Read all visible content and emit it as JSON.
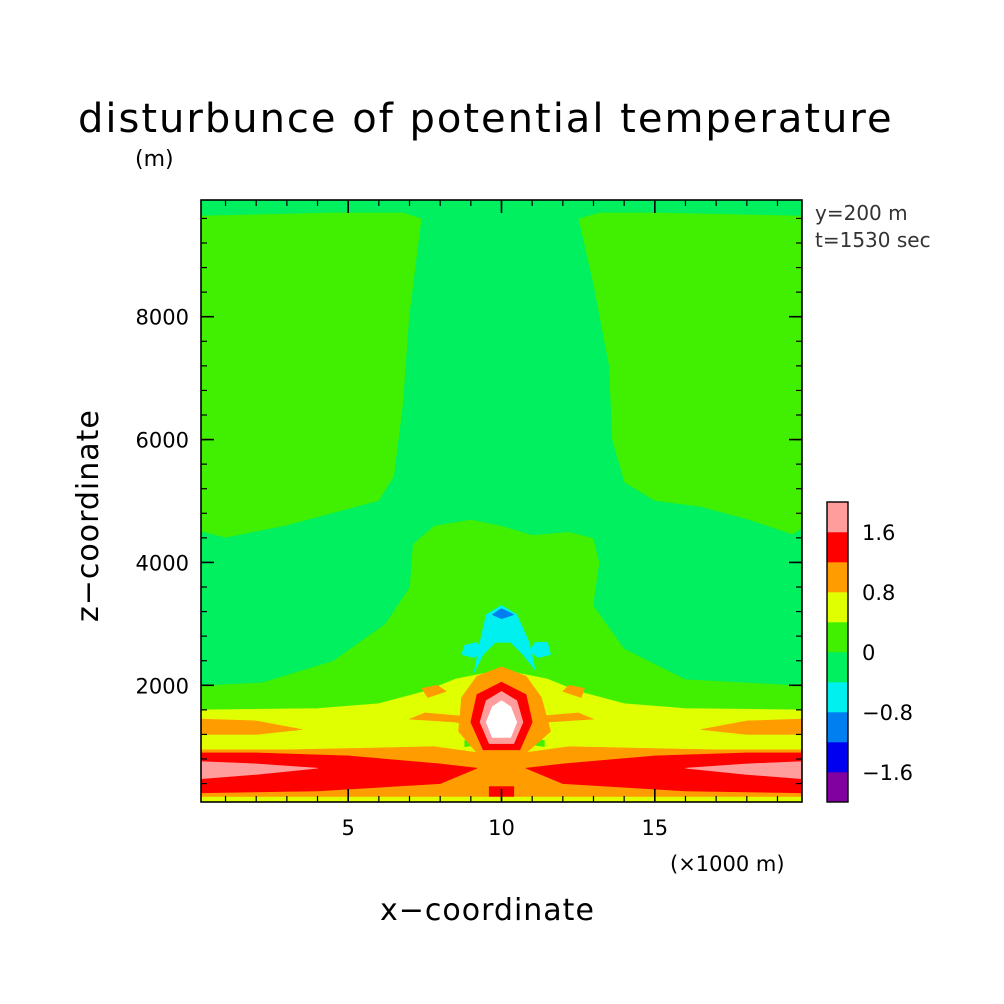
{
  "chart_data": {
    "type": "heatmap",
    "title": "disturbunce of potential temperature",
    "xlabel": "x−coordinate",
    "ylabel": "z−coordinate",
    "x_unit_label": "(×1000 m)",
    "y_unit_label": "(m)",
    "annotation_y": "y=200 m",
    "annotation_t": "t=1530 sec",
    "xlim": [
      0.2,
      19.8
    ],
    "ylim": [
      100,
      9900
    ],
    "x_ticks": [
      5,
      10,
      15
    ],
    "x_tick_labels": [
      "5",
      "10",
      "15"
    ],
    "y_ticks": [
      2000,
      4000,
      6000,
      8000
    ],
    "y_tick_labels": [
      "2000",
      "4000",
      "6000",
      "8000"
    ],
    "x_minor_step": 1,
    "y_minor_step": 400,
    "grid": false,
    "colorbar": {
      "label_values": [
        "1.6",
        "0.8",
        "0",
        "−0.8",
        "−1.6"
      ],
      "levels": [
        -2.0,
        -1.6,
        -1.2,
        -0.8,
        -0.4,
        0.0,
        0.4,
        0.8,
        1.2,
        1.6,
        2.0
      ],
      "colors": [
        "#8000a0",
        "#0000f0",
        "#0080f0",
        "#00f0f0",
        "#00f060",
        "#40f000",
        "#e0ff00",
        "#ff9c00",
        "#ff0000",
        "#ff9c9c",
        "#ffffff"
      ]
    },
    "regions": [
      {
        "level": 0.2,
        "points": [
          [
            0.2,
            100
          ],
          [
            19.8,
            100
          ],
          [
            19.8,
            9900
          ],
          [
            0.2,
            9900
          ]
        ]
      },
      {
        "level": -0.2,
        "points": [
          [
            0.2,
            2000
          ],
          [
            2.2,
            2050
          ],
          [
            4.5,
            2400
          ],
          [
            6.2,
            3000
          ],
          [
            7.0,
            3600
          ],
          [
            7.1,
            4300
          ],
          [
            7.8,
            4600
          ],
          [
            9.0,
            4700
          ],
          [
            10.0,
            4600
          ],
          [
            11.0,
            4450
          ],
          [
            12.2,
            4500
          ],
          [
            13.0,
            4400
          ],
          [
            13.2,
            4000
          ],
          [
            13.0,
            3300
          ],
          [
            14.0,
            2600
          ],
          [
            16.0,
            2100
          ],
          [
            19.8,
            2000
          ],
          [
            19.8,
            4550
          ],
          [
            19.5,
            4450
          ],
          [
            18.0,
            4700
          ],
          [
            16.5,
            4900
          ],
          [
            15.0,
            5000
          ],
          [
            14.0,
            5300
          ],
          [
            13.6,
            6000
          ],
          [
            13.5,
            7200
          ],
          [
            13.0,
            8500
          ],
          [
            12.5,
            9600
          ],
          [
            13.2,
            9700
          ],
          [
            15.0,
            9700
          ],
          [
            19.8,
            9650
          ],
          [
            19.8,
            9900
          ],
          [
            0.2,
            9900
          ],
          [
            0.2,
            9650
          ],
          [
            4.5,
            9700
          ],
          [
            6.8,
            9700
          ],
          [
            7.4,
            9600
          ],
          [
            7.0,
            8000
          ],
          [
            6.8,
            6600
          ],
          [
            6.5,
            5400
          ],
          [
            6.0,
            5000
          ],
          [
            4.5,
            4800
          ],
          [
            3.0,
            4600
          ],
          [
            1.0,
            4400
          ],
          [
            0.2,
            4500
          ]
        ]
      },
      {
        "level": 0.2,
        "points": [
          [
            2.2,
            9650
          ],
          [
            2.4,
            8500
          ],
          [
            3.0,
            7600
          ],
          [
            3.8,
            7350
          ],
          [
            4.5,
            7600
          ],
          [
            5.2,
            8600
          ],
          [
            5.5,
            9650
          ]
        ]
      },
      {
        "level": 0.2,
        "points": [
          [
            14.5,
            9650
          ],
          [
            14.8,
            8600
          ],
          [
            15.5,
            7600
          ],
          [
            16.2,
            7350
          ],
          [
            17.0,
            7600
          ],
          [
            17.6,
            8500
          ],
          [
            17.8,
            9650
          ]
        ]
      },
      {
        "level": 0.6,
        "points": [
          [
            0.2,
            100
          ],
          [
            19.8,
            100
          ],
          [
            19.8,
            1600
          ],
          [
            16.0,
            1620
          ],
          [
            14.0,
            1700
          ],
          [
            12.5,
            1900
          ],
          [
            11.5,
            2100
          ],
          [
            10.0,
            2250
          ],
          [
            8.5,
            2100
          ],
          [
            7.5,
            1900
          ],
          [
            6.0,
            1700
          ],
          [
            4.0,
            1620
          ],
          [
            0.2,
            1600
          ]
        ]
      },
      {
        "level": -0.6,
        "points": [
          [
            9.1,
            2200
          ],
          [
            9.3,
            2700
          ],
          [
            9.5,
            3150
          ],
          [
            10.0,
            3300
          ],
          [
            10.5,
            3150
          ],
          [
            10.9,
            2700
          ],
          [
            11.1,
            2250
          ],
          [
            10.7,
            2500
          ],
          [
            10.3,
            2700
          ],
          [
            9.8,
            2700
          ],
          [
            9.4,
            2500
          ]
        ]
      },
      {
        "level": -0.6,
        "points": [
          [
            8.7,
            2500
          ],
          [
            9.1,
            2450
          ],
          [
            9.4,
            2550
          ],
          [
            9.2,
            2700
          ],
          [
            8.8,
            2650
          ]
        ]
      },
      {
        "level": -0.6,
        "points": [
          [
            10.9,
            2550
          ],
          [
            11.2,
            2450
          ],
          [
            11.6,
            2500
          ],
          [
            11.5,
            2700
          ],
          [
            11.1,
            2700
          ]
        ]
      },
      {
        "level": -1.0,
        "points": [
          [
            9.7,
            3150
          ],
          [
            10.0,
            3250
          ],
          [
            10.4,
            3150
          ],
          [
            10.0,
            3080
          ]
        ]
      },
      {
        "level": 0.2,
        "points": [
          [
            9.9,
            2650
          ],
          [
            10.1,
            2650
          ],
          [
            10.1,
            2680
          ],
          [
            9.9,
            2680
          ]
        ]
      },
      {
        "level": 0.2,
        "points": [
          [
            8.8,
            1000
          ],
          [
            9.5,
            1050
          ],
          [
            9.4,
            1150
          ],
          [
            8.8,
            1100
          ]
        ]
      },
      {
        "level": 0.2,
        "points": [
          [
            10.8,
            1050
          ],
          [
            11.4,
            1000
          ],
          [
            11.4,
            1100
          ],
          [
            10.9,
            1150
          ]
        ]
      },
      {
        "level": 1.0,
        "points": [
          [
            0.2,
            100
          ],
          [
            19.8,
            100
          ],
          [
            19.8,
            950
          ],
          [
            17.0,
            950
          ],
          [
            14.0,
            980
          ],
          [
            12.2,
            1000
          ],
          [
            10.0,
            850
          ],
          [
            7.8,
            1000
          ],
          [
            6.0,
            980
          ],
          [
            3.0,
            950
          ],
          [
            0.2,
            950
          ]
        ]
      },
      {
        "level": 1.0,
        "points": [
          [
            0.2,
            1200
          ],
          [
            2.0,
            1200
          ],
          [
            3.5,
            1280
          ],
          [
            2.0,
            1420
          ],
          [
            0.2,
            1450
          ]
        ]
      },
      {
        "level": 1.0,
        "points": [
          [
            16.5,
            1280
          ],
          [
            18.0,
            1200
          ],
          [
            19.8,
            1200
          ],
          [
            19.8,
            1450
          ],
          [
            18.0,
            1420
          ]
        ]
      },
      {
        "level": 1.0,
        "points": [
          [
            7.0,
            1450
          ],
          [
            8.5,
            1400
          ],
          [
            9.2,
            1300
          ],
          [
            8.7,
            1500
          ],
          [
            7.5,
            1550
          ]
        ]
      },
      {
        "level": 1.0,
        "points": [
          [
            10.8,
            1300
          ],
          [
            11.5,
            1400
          ],
          [
            13.0,
            1450
          ],
          [
            12.5,
            1550
          ],
          [
            11.3,
            1500
          ]
        ]
      },
      {
        "level": 1.0,
        "points": [
          [
            7.6,
            1800
          ],
          [
            8.2,
            1900
          ],
          [
            7.9,
            2000
          ],
          [
            7.4,
            1950
          ]
        ]
      },
      {
        "level": 1.0,
        "points": [
          [
            12.0,
            1900
          ],
          [
            12.6,
            1800
          ],
          [
            12.7,
            1950
          ],
          [
            12.2,
            2000
          ]
        ]
      },
      {
        "level": 1.0,
        "points": [
          [
            9.2,
            900
          ],
          [
            10.0,
            800
          ],
          [
            10.8,
            900
          ],
          [
            11.6,
            1250
          ],
          [
            11.3,
            1800
          ],
          [
            10.8,
            2150
          ],
          [
            10.0,
            2300
          ],
          [
            9.2,
            2150
          ],
          [
            8.7,
            1800
          ],
          [
            8.6,
            1250
          ]
        ]
      },
      {
        "level": 1.4,
        "points": [
          [
            0.2,
            250
          ],
          [
            4.0,
            280
          ],
          [
            8.0,
            400
          ],
          [
            9.2,
            650
          ],
          [
            8.0,
            720
          ],
          [
            5.0,
            850
          ],
          [
            2.0,
            900
          ],
          [
            0.2,
            900
          ]
        ]
      },
      {
        "level": 1.4,
        "points": [
          [
            10.8,
            650
          ],
          [
            12.0,
            400
          ],
          [
            16.0,
            280
          ],
          [
            19.8,
            250
          ],
          [
            19.8,
            900
          ],
          [
            18.0,
            900
          ],
          [
            15.0,
            850
          ],
          [
            12.0,
            720
          ]
        ]
      },
      {
        "level": 1.4,
        "points": [
          [
            9.6,
            100
          ],
          [
            10.4,
            100
          ],
          [
            10.4,
            350
          ],
          [
            9.6,
            350
          ]
        ]
      },
      {
        "level": 1.4,
        "points": [
          [
            9.4,
            950
          ],
          [
            10.6,
            950
          ],
          [
            11.0,
            1400
          ],
          [
            10.8,
            1850
          ],
          [
            10.0,
            2050
          ],
          [
            9.2,
            1850
          ],
          [
            9.0,
            1400
          ]
        ]
      },
      {
        "level": 1.8,
        "points": [
          [
            0.2,
            480
          ],
          [
            2.0,
            550
          ],
          [
            4.0,
            650
          ],
          [
            2.0,
            720
          ],
          [
            0.2,
            760
          ]
        ]
      },
      {
        "level": 1.8,
        "points": [
          [
            16.0,
            650
          ],
          [
            18.0,
            550
          ],
          [
            19.8,
            480
          ],
          [
            19.8,
            760
          ],
          [
            18.0,
            720
          ]
        ]
      },
      {
        "level": 1.8,
        "points": [
          [
            9.6,
            1050
          ],
          [
            10.4,
            1050
          ],
          [
            10.7,
            1400
          ],
          [
            10.5,
            1750
          ],
          [
            10.0,
            1900
          ],
          [
            9.5,
            1750
          ],
          [
            9.3,
            1400
          ]
        ]
      },
      {
        "level": 2.2,
        "points": [
          [
            9.7,
            1150
          ],
          [
            10.3,
            1150
          ],
          [
            10.5,
            1400
          ],
          [
            10.3,
            1650
          ],
          [
            10.0,
            1750
          ],
          [
            9.7,
            1650
          ],
          [
            9.5,
            1400
          ]
        ]
      },
      {
        "level": 1.0,
        "points": [
          [
            9.4,
            580
          ],
          [
            10.6,
            580
          ],
          [
            10.5,
            640
          ],
          [
            9.5,
            640
          ]
        ]
      },
      {
        "level": 0.6,
        "points": [
          [
            0.2,
            100
          ],
          [
            19.8,
            100
          ],
          [
            19.8,
            180
          ],
          [
            0.2,
            180
          ]
        ]
      }
    ]
  }
}
